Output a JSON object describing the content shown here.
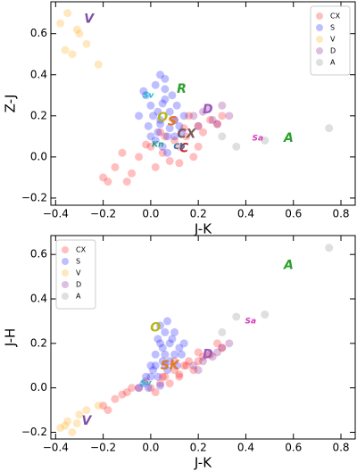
{
  "chart_data": [
    {
      "type": "scatter",
      "xlabel": "J-K",
      "ylabel": "Z-J",
      "xlim": [
        -0.42,
        0.86
      ],
      "ylim": [
        -0.235,
        0.755
      ],
      "xticks": [
        {
          "value": -0.4,
          "label": "−0.4"
        },
        {
          "value": -0.2,
          "label": "−0.2"
        },
        {
          "value": 0,
          "label": "0.0"
        },
        0.2,
        0.4,
        0.6,
        0.8
      ],
      "yticks": [
        {
          "value": -0.2,
          "label": "−0.2"
        },
        {
          "value": 0,
          "label": "0.0"
        },
        0.2,
        0.4,
        0.6
      ],
      "legend": "upper right",
      "series": [
        {
          "name": "CX",
          "color": "#ff0000",
          "x": [
            -0.2,
            -0.15,
            -0.1,
            -0.05,
            0.0,
            0.05,
            0.1,
            0.15,
            0.2,
            0.25,
            0.3,
            -0.12,
            -0.08,
            0.02,
            0.08,
            0.12,
            0.18,
            0.22,
            0.06,
            0.14,
            0.1,
            0.04,
            -0.02,
            0.16,
            0.28,
            0.2,
            0.12,
            -0.18
          ],
          "y": [
            -0.1,
            -0.05,
            -0.12,
            0.0,
            0.05,
            0.02,
            0.08,
            0.1,
            0.15,
            0.18,
            0.2,
            0.02,
            -0.08,
            -0.05,
            -0.02,
            0.05,
            0.0,
            0.12,
            0.1,
            0.14,
            0.18,
            0.12,
            0.06,
            0.2,
            0.16,
            0.05,
            -0.03,
            -0.12
          ]
        },
        {
          "name": "S",
          "color": "#0000ff",
          "x": [
            -0.05,
            -0.02,
            0.0,
            0.02,
            0.04,
            0.06,
            0.08,
            0.1,
            0.12,
            0.03,
            0.05,
            0.07,
            -0.01,
            0.01,
            0.09,
            0.11,
            0.14,
            0.06,
            0.04,
            0.02,
            0.0,
            0.08,
            0.05,
            0.03,
            0.07,
            0.1,
            -0.03,
            0.13,
            0.06,
            0.04
          ],
          "y": [
            0.2,
            0.3,
            0.25,
            0.35,
            0.4,
            0.28,
            0.22,
            0.18,
            0.15,
            0.12,
            0.05,
            0.1,
            0.15,
            0.2,
            0.3,
            0.25,
            0.2,
            0.33,
            0.18,
            0.08,
            0.1,
            0.14,
            0.26,
            0.22,
            0.02,
            0.1,
            0.32,
            0.12,
            0.38,
            0.16
          ]
        },
        {
          "name": "V",
          "color": "#ffa500",
          "x": [
            -0.38,
            -0.35,
            -0.33,
            -0.3,
            -0.27,
            -0.36,
            -0.31,
            -0.22
          ],
          "y": [
            0.65,
            0.7,
            0.5,
            0.6,
            0.55,
            0.52,
            0.62,
            0.45
          ]
        },
        {
          "name": "D",
          "color": "#800080",
          "x": [
            0.18,
            0.22,
            0.26,
            0.3,
            0.33,
            0.2,
            0.24,
            0.28
          ],
          "y": [
            0.2,
            0.22,
            0.18,
            0.25,
            0.2,
            0.15,
            0.24,
            0.16
          ]
        },
        {
          "name": "A",
          "color": "#808080",
          "x": [
            0.36,
            0.48,
            0.75,
            0.3
          ],
          "y": [
            0.05,
            0.08,
            0.14,
            0.1
          ]
        }
      ],
      "annotations": [
        {
          "text": "V",
          "x": -0.26,
          "y": 0.67,
          "color": "#7e4fa8"
        },
        {
          "text": "R",
          "x": 0.13,
          "y": 0.33,
          "color": "#2ca02c"
        },
        {
          "text": "D",
          "x": 0.24,
          "y": 0.23,
          "color": "#9a5cc0"
        },
        {
          "text": "O",
          "x": 0.05,
          "y": 0.19,
          "color": "#b5b518"
        },
        {
          "text": "S",
          "x": 0.09,
          "y": 0.17,
          "color": "#e07b20"
        },
        {
          "text": "A",
          "x": 0.58,
          "y": 0.09,
          "color": "#2ca02c"
        },
        {
          "text": "CX",
          "x": 0.15,
          "y": 0.11,
          "color": "#7a5a5a"
        },
        {
          "text": "C",
          "x": 0.14,
          "y": 0.04,
          "color": "#d62728"
        },
        {
          "text": "Sa",
          "x": 0.45,
          "y": 0.09,
          "color": "#d63ab5"
        },
        {
          "text": "Sv",
          "x": -0.01,
          "y": 0.3,
          "color": "#17becf"
        },
        {
          "text": "Kn",
          "x": 0.03,
          "y": 0.06,
          "color": "#1f9e89"
        },
        {
          "text": "Cb",
          "x": 0.12,
          "y": 0.05,
          "color": "#1f77b4"
        }
      ]
    },
    {
      "type": "scatter",
      "xlabel": "J-K",
      "ylabel": "J-H",
      "xlim": [
        -0.42,
        0.86
      ],
      "ylim": [
        -0.23,
        0.685
      ],
      "xticks": [
        {
          "value": -0.4,
          "label": "−0.4"
        },
        {
          "value": -0.2,
          "label": "−0.2"
        },
        {
          "value": 0,
          "label": "0.0"
        },
        0.2,
        0.4,
        0.6,
        0.8
      ],
      "yticks": [
        {
          "value": -0.2,
          "label": "−0.2"
        },
        {
          "value": 0,
          "label": "0.0"
        },
        0.2,
        0.4,
        0.6
      ],
      "legend": "upper left",
      "series": [
        {
          "name": "CX",
          "color": "#ff0000",
          "x": [
            -0.2,
            -0.15,
            -0.1,
            -0.05,
            0.0,
            0.05,
            0.1,
            0.15,
            0.2,
            0.25,
            0.3,
            -0.12,
            -0.08,
            0.02,
            0.08,
            0.12,
            0.18,
            0.22,
            0.06,
            0.14,
            0.1,
            0.04,
            -0.02,
            0.16,
            0.28,
            0.2,
            0.12,
            -0.18
          ],
          "y": [
            -0.08,
            -0.05,
            -0.02,
            0.0,
            0.0,
            0.05,
            0.08,
            0.1,
            0.12,
            0.15,
            0.18,
            -0.03,
            0.0,
            -0.02,
            0.02,
            0.06,
            0.08,
            0.14,
            0.05,
            0.1,
            0.12,
            0.02,
            0.03,
            0.12,
            0.2,
            0.16,
            0.05,
            -0.1
          ]
        },
        {
          "name": "S",
          "color": "#0000ff",
          "x": [
            -0.05,
            -0.02,
            0.0,
            0.02,
            0.04,
            0.06,
            0.08,
            0.1,
            0.12,
            0.03,
            0.05,
            0.07,
            -0.01,
            0.01,
            0.09,
            0.11,
            0.14,
            0.06,
            0.04,
            0.02,
            0.0,
            0.08,
            0.05,
            0.03,
            0.07,
            0.1,
            -0.03,
            0.13,
            0.06,
            0.04
          ],
          "y": [
            0.0,
            0.05,
            0.1,
            0.15,
            0.2,
            0.25,
            0.2,
            0.15,
            0.18,
            0.05,
            0.12,
            0.3,
            0.0,
            0.08,
            0.22,
            0.1,
            0.2,
            0.15,
            0.28,
            0.1,
            0.05,
            0.12,
            0.18,
            0.22,
            0.08,
            0.25,
            0.02,
            0.15,
            0.1,
            0.01
          ]
        },
        {
          "name": "V",
          "color": "#ffa500",
          "x": [
            -0.38,
            -0.35,
            -0.33,
            -0.3,
            -0.27,
            -0.36,
            -0.31,
            -0.22
          ],
          "y": [
            -0.18,
            -0.15,
            -0.2,
            -0.12,
            -0.1,
            -0.17,
            -0.16,
            -0.08
          ]
        },
        {
          "name": "D",
          "color": "#800080",
          "x": [
            0.18,
            0.22,
            0.26,
            0.3,
            0.33,
            0.2,
            0.24,
            0.28
          ],
          "y": [
            0.1,
            0.12,
            0.14,
            0.18,
            0.2,
            0.08,
            0.15,
            0.16
          ]
        },
        {
          "name": "A",
          "color": "#808080",
          "x": [
            0.36,
            0.48,
            0.75,
            0.3
          ],
          "y": [
            0.32,
            0.33,
            0.63,
            0.25
          ]
        }
      ],
      "annotations": [
        {
          "text": "V",
          "x": -0.27,
          "y": -0.15,
          "color": "#7e4fa8"
        },
        {
          "text": "A",
          "x": 0.58,
          "y": 0.55,
          "color": "#2ca02c"
        },
        {
          "text": "Sa",
          "x": 0.42,
          "y": 0.3,
          "color": "#d63ab5"
        },
        {
          "text": "O",
          "x": 0.02,
          "y": 0.27,
          "color": "#b5b518"
        },
        {
          "text": "D",
          "x": 0.24,
          "y": 0.15,
          "color": "#9a5cc0"
        },
        {
          "text": "SK",
          "x": 0.08,
          "y": 0.1,
          "color": "#e07b20"
        },
        {
          "text": "Sv",
          "x": -0.02,
          "y": 0.02,
          "color": "#17becf"
        }
      ]
    }
  ]
}
